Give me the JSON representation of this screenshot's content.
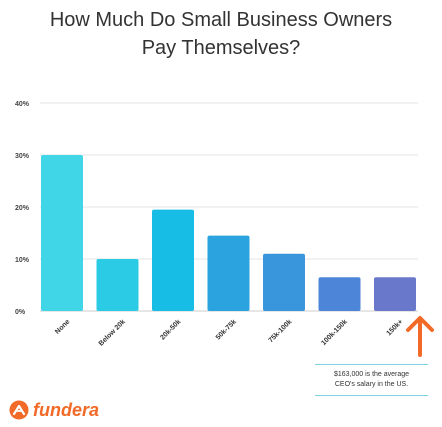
{
  "title_line1": "How Much Do Small Business Owners",
  "title_line2": "Pay Themselves?",
  "chart_data": {
    "type": "bar",
    "categories": [
      "None",
      "Below 20k",
      "20k-50k",
      "50k-75k",
      "75k-100k",
      "100k-150k",
      "150k+"
    ],
    "values": [
      30,
      10,
      19.5,
      14.5,
      11,
      6.5,
      6.5
    ],
    "colors": [
      "#40d6e8",
      "#2bcbe6",
      "#18bde5",
      "#2aa3df",
      "#3996dc",
      "#4d86d8",
      "#6a78cc"
    ],
    "ylim": [
      0,
      40
    ],
    "yticks": [
      "0%",
      "10%",
      "20%",
      "30%",
      "40%"
    ],
    "ytick_values": [
      0,
      10,
      20,
      30,
      40
    ],
    "grid": true
  },
  "annotation": {
    "line1": "$163,000 is the average",
    "line2": "CEO's salary in the US.",
    "arrow_color": "#f26a27"
  },
  "brand": {
    "name": "fundera",
    "color": "#f26a27"
  }
}
